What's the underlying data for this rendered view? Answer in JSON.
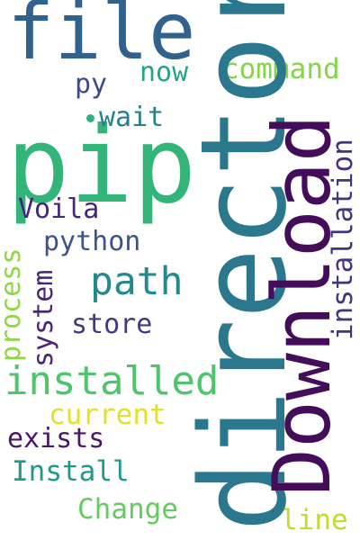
{
  "words": {
    "file": "file",
    "pip": "pip",
    "directory": "directory",
    "download": "Download",
    "installed": "installed",
    "path": "path",
    "installation": "installation",
    "command": "command",
    "now": "now",
    "py": "py",
    "wait": "wait",
    "voila": "Voila",
    "python": "python",
    "process": "process",
    "system": "system",
    "store": "store",
    "current": "current",
    "exists": "exists",
    "install": "Install",
    "change": "Change",
    "line": "line"
  },
  "colors": {
    "file": "#31628d",
    "pip": "#33b57a",
    "directory": "#2a778e",
    "download": "#440d5a",
    "installed": "#4fc46a",
    "path": "#24898d",
    "installation": "#46337f",
    "command": "#86d549",
    "now": "#22a785",
    "py": "#3d4a89",
    "wait": "#27808e",
    "voila": "#46257e",
    "python": "#3c548a",
    "process": "#8fd744",
    "system": "#482576",
    "store": "#453781",
    "current": "#e0e32b",
    "exists": "#481769",
    "install": "#1f9a8a",
    "change": "#63cb5f",
    "line": "#bfdd2e"
  }
}
